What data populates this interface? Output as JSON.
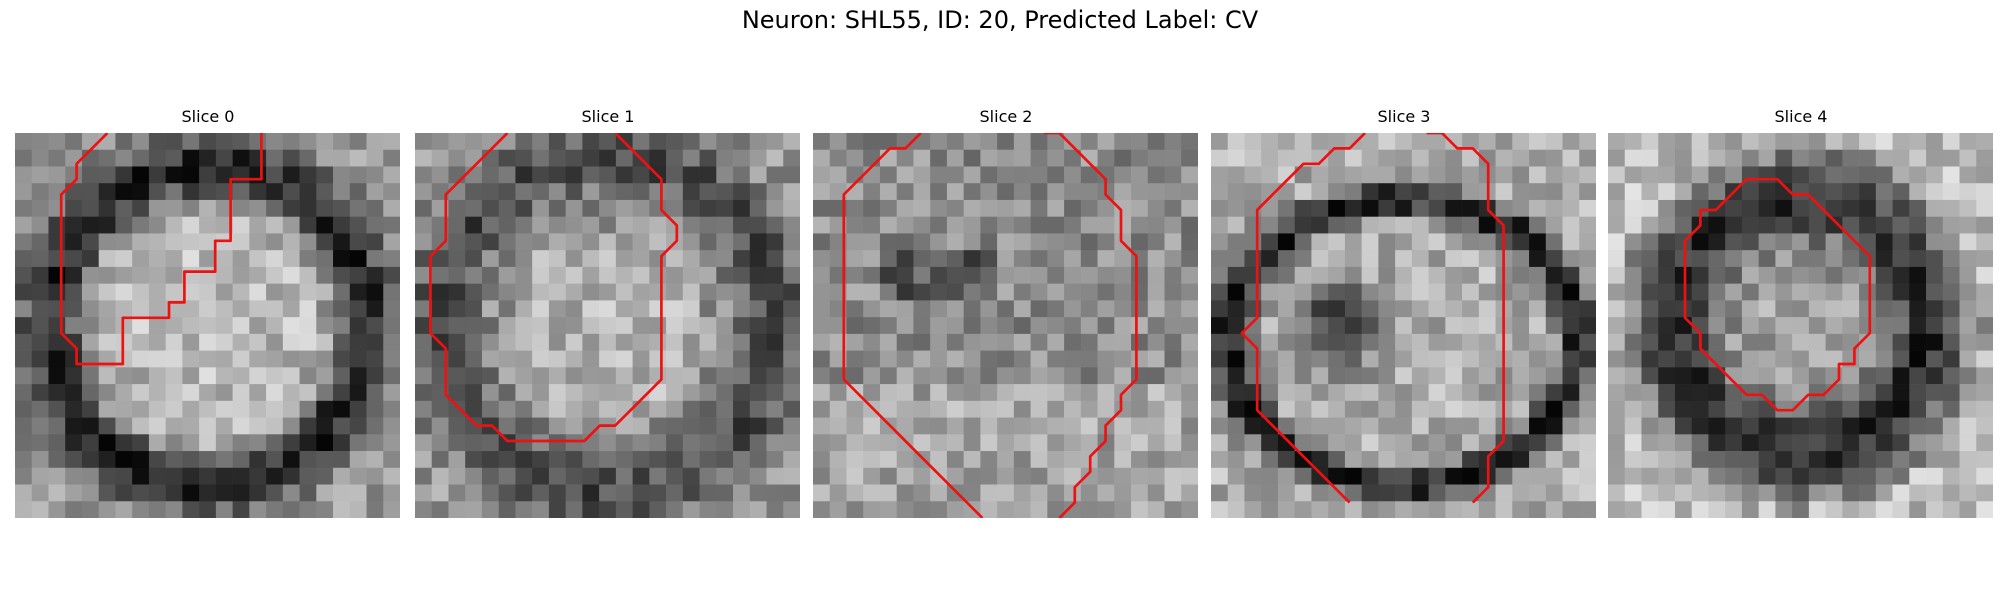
{
  "figure": {
    "title": "Neuron: SHL55, ID: 20, Predicted Label: CV"
  },
  "colors": {
    "contour": "#ee1111",
    "background": "#ffffff"
  },
  "panels": [
    {
      "title": "Slice 0",
      "image_description": "grayscale microscopy patch, 23x23 pixel grid, bright textured cell body ringed by dark membrane",
      "contour": [
        [
          6,
          0
        ],
        [
          5,
          1
        ],
        [
          4,
          2
        ],
        [
          4,
          3
        ],
        [
          3,
          4
        ],
        [
          3,
          5
        ],
        [
          3,
          6
        ],
        [
          3,
          7
        ],
        [
          3,
          8
        ],
        [
          3,
          9
        ],
        [
          3,
          10
        ],
        [
          3,
          11
        ],
        [
          3,
          12
        ],
        [
          3,
          13
        ],
        [
          4,
          14
        ],
        [
          4,
          15
        ],
        [
          5,
          15
        ],
        [
          6,
          15
        ],
        [
          7,
          15
        ],
        [
          7,
          14
        ],
        [
          7,
          13
        ],
        [
          7,
          12
        ],
        [
          8,
          12
        ],
        [
          9,
          12
        ],
        [
          10,
          12
        ],
        [
          10,
          11
        ],
        [
          11,
          11
        ],
        [
          11,
          10
        ],
        [
          11,
          9
        ],
        [
          12,
          9
        ],
        [
          13,
          9
        ],
        [
          13,
          8
        ],
        [
          13,
          7
        ],
        [
          14,
          7
        ],
        [
          14,
          6
        ],
        [
          14,
          5
        ],
        [
          14,
          4
        ],
        [
          14,
          3
        ],
        [
          15,
          3
        ],
        [
          16,
          3
        ],
        [
          16,
          2
        ],
        [
          16,
          1
        ],
        [
          16,
          0
        ]
      ],
      "contour_closed": false,
      "seed": 11
    },
    {
      "title": "Slice 1",
      "image_description": "grayscale microscopy patch, mottled gray cell with darker lower boundary",
      "contour": [
        [
          6,
          0
        ],
        [
          5,
          1
        ],
        [
          4,
          2
        ],
        [
          3,
          3
        ],
        [
          2,
          4
        ],
        [
          2,
          5
        ],
        [
          2,
          6
        ],
        [
          2,
          7
        ],
        [
          1,
          8
        ],
        [
          1,
          9
        ],
        [
          1,
          10
        ],
        [
          1,
          11
        ],
        [
          1,
          12
        ],
        [
          1,
          13
        ],
        [
          2,
          14
        ],
        [
          2,
          15
        ],
        [
          2,
          16
        ],
        [
          2,
          17
        ],
        [
          3,
          18
        ],
        [
          4,
          19
        ],
        [
          5,
          19
        ],
        [
          6,
          20
        ],
        [
          7,
          20
        ],
        [
          8,
          20
        ],
        [
          9,
          20
        ],
        [
          10,
          20
        ],
        [
          11,
          20
        ],
        [
          12,
          19
        ],
        [
          13,
          19
        ],
        [
          14,
          18
        ],
        [
          15,
          17
        ],
        [
          16,
          16
        ],
        [
          16,
          15
        ],
        [
          16,
          14
        ],
        [
          16,
          13
        ],
        [
          16,
          12
        ],
        [
          16,
          11
        ],
        [
          16,
          10
        ],
        [
          16,
          9
        ],
        [
          16,
          8
        ],
        [
          17,
          7
        ],
        [
          17,
          6
        ],
        [
          16,
          5
        ],
        [
          16,
          4
        ],
        [
          16,
          3
        ],
        [
          15,
          2
        ],
        [
          14,
          1
        ],
        [
          13,
          0
        ]
      ],
      "contour_closed": false,
      "seed": 23
    },
    {
      "title": "Slice 2",
      "image_description": "grayscale microscopy patch, noisy speckled texture with faint cell outline",
      "contour": [
        [
          7,
          0
        ],
        [
          6,
          1
        ],
        [
          5,
          1
        ],
        [
          4,
          2
        ],
        [
          3,
          3
        ],
        [
          2,
          4
        ],
        [
          2,
          5
        ],
        [
          2,
          6
        ],
        [
          2,
          7
        ],
        [
          2,
          8
        ],
        [
          2,
          9
        ],
        [
          2,
          10
        ],
        [
          2,
          11
        ],
        [
          2,
          12
        ],
        [
          2,
          13
        ],
        [
          2,
          14
        ],
        [
          2,
          15
        ],
        [
          2,
          16
        ],
        [
          3,
          17
        ],
        [
          4,
          18
        ],
        [
          5,
          19
        ],
        [
          6,
          20
        ],
        [
          7,
          21
        ],
        [
          8,
          22
        ],
        [
          9,
          23
        ],
        [
          10,
          24
        ],
        [
          11,
          25
        ]
      ],
      "contour2": [
        [
          15,
          0
        ],
        [
          16,
          0
        ],
        [
          17,
          1
        ],
        [
          18,
          2
        ],
        [
          19,
          3
        ],
        [
          19,
          4
        ],
        [
          20,
          5
        ],
        [
          20,
          6
        ],
        [
          20,
          7
        ],
        [
          21,
          8
        ],
        [
          21,
          9
        ],
        [
          21,
          10
        ],
        [
          21,
          11
        ],
        [
          21,
          12
        ],
        [
          21,
          13
        ],
        [
          21,
          14
        ],
        [
          21,
          15
        ],
        [
          21,
          16
        ],
        [
          20,
          17
        ],
        [
          20,
          18
        ],
        [
          19,
          19
        ],
        [
          19,
          20
        ],
        [
          18,
          21
        ],
        [
          18,
          22
        ],
        [
          17,
          23
        ],
        [
          17,
          24
        ],
        [
          16,
          25
        ]
      ],
      "contour_closed": false,
      "seed": 37
    },
    {
      "title": "Slice 3",
      "image_description": "grayscale microscopy patch, bright cell body with a dark elliptical membrane ring",
      "contour": [
        [
          10,
          0
        ],
        [
          9,
          1
        ],
        [
          8,
          1
        ],
        [
          7,
          2
        ],
        [
          6,
          2
        ],
        [
          5,
          3
        ],
        [
          4,
          4
        ],
        [
          3,
          5
        ],
        [
          3,
          6
        ],
        [
          3,
          7
        ],
        [
          3,
          8
        ],
        [
          3,
          9
        ],
        [
          3,
          10
        ],
        [
          3,
          11
        ],
        [
          3,
          12
        ],
        [
          2,
          13
        ],
        [
          3,
          14
        ],
        [
          3,
          15
        ],
        [
          3,
          16
        ],
        [
          3,
          17
        ],
        [
          3,
          18
        ],
        [
          4,
          19
        ],
        [
          5,
          20
        ],
        [
          6,
          21
        ],
        [
          7,
          22
        ],
        [
          8,
          23
        ],
        [
          9,
          24
        ]
      ],
      "contour2": [
        [
          14,
          0
        ],
        [
          15,
          0
        ],
        [
          16,
          1
        ],
        [
          17,
          1
        ],
        [
          18,
          2
        ],
        [
          18,
          3
        ],
        [
          18,
          4
        ],
        [
          18,
          5
        ],
        [
          19,
          6
        ],
        [
          19,
          7
        ],
        [
          19,
          8
        ],
        [
          19,
          9
        ],
        [
          19,
          10
        ],
        [
          19,
          11
        ],
        [
          19,
          12
        ],
        [
          19,
          13
        ],
        [
          19,
          14
        ],
        [
          19,
          15
        ],
        [
          19,
          16
        ],
        [
          19,
          17
        ],
        [
          19,
          18
        ],
        [
          19,
          19
        ],
        [
          19,
          20
        ],
        [
          18,
          21
        ],
        [
          18,
          22
        ],
        [
          18,
          23
        ],
        [
          17,
          24
        ]
      ],
      "contour_closed": false,
      "seed": 51
    },
    {
      "title": "Slice 4",
      "image_description": "grayscale microscopy patch, dark ring-shaped cell with mottled bright interior",
      "contour": [
        [
          8,
          4
        ],
        [
          7,
          5
        ],
        [
          6,
          5
        ],
        [
          6,
          6
        ],
        [
          5,
          7
        ],
        [
          5,
          8
        ],
        [
          5,
          9
        ],
        [
          5,
          10
        ],
        [
          5,
          11
        ],
        [
          5,
          12
        ],
        [
          6,
          13
        ],
        [
          6,
          14
        ],
        [
          7,
          15
        ],
        [
          8,
          16
        ],
        [
          9,
          17
        ],
        [
          10,
          17
        ],
        [
          11,
          18
        ],
        [
          12,
          18
        ],
        [
          13,
          17
        ],
        [
          14,
          17
        ],
        [
          15,
          16
        ],
        [
          15,
          15
        ],
        [
          16,
          15
        ],
        [
          16,
          14
        ],
        [
          17,
          13
        ],
        [
          17,
          12
        ],
        [
          17,
          11
        ],
        [
          17,
          10
        ],
        [
          17,
          9
        ],
        [
          17,
          8
        ],
        [
          16,
          7
        ],
        [
          15,
          6
        ],
        [
          14,
          5
        ],
        [
          13,
          4
        ],
        [
          12,
          4
        ],
        [
          11,
          3
        ],
        [
          10,
          3
        ],
        [
          9,
          3
        ]
      ],
      "contour_closed": true,
      "seed": 67
    }
  ]
}
